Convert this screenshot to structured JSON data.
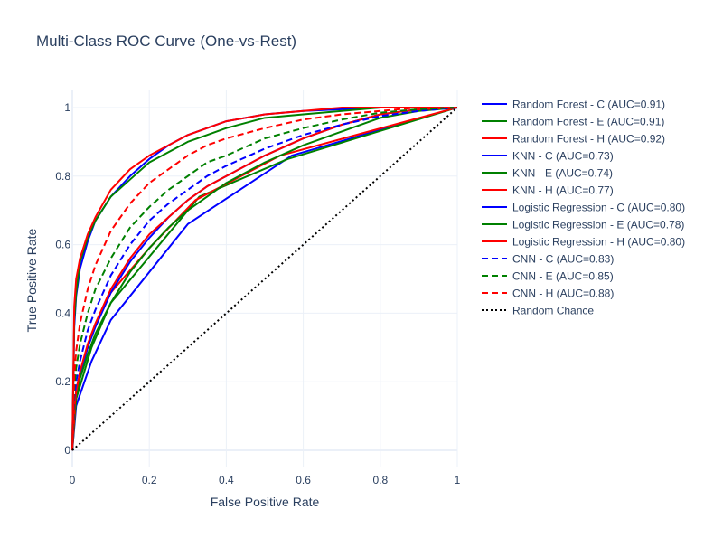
{
  "chart_data": {
    "type": "line",
    "title": "Multi-Class ROC Curve (One-vs-Rest)",
    "xlabel": "False Positive Rate",
    "ylabel": "True Positive Rate",
    "xlim": [
      0,
      1
    ],
    "ylim": [
      -0.05,
      1.05
    ],
    "xticks": [
      0,
      0.2,
      0.4,
      0.6,
      0.8,
      1
    ],
    "xtick_labels": [
      "0",
      "0.2",
      "0.4",
      "0.6",
      "0.8",
      "1"
    ],
    "yticks": [
      0,
      0.2,
      0.4,
      0.6,
      0.8,
      1
    ],
    "ytick_labels": [
      "0",
      "0.2",
      "0.4",
      "0.6",
      "0.8",
      "1"
    ],
    "grid": true,
    "legend_position": "right",
    "colors": {
      "C": "#0000ff",
      "E": "#008000",
      "H": "#ff0000",
      "chance": "#000000"
    },
    "series": [
      {
        "name": "Random Forest - C (AUC=0.91)",
        "color": "#0000ff",
        "dash": "solid",
        "x": [
          0,
          0.005,
          0.01,
          0.02,
          0.04,
          0.06,
          0.1,
          0.15,
          0.2,
          0.25,
          0.3,
          0.35,
          0.4,
          0.5,
          0.6,
          0.7,
          0.8,
          0.9,
          1.0
        ],
        "y": [
          0,
          0.36,
          0.45,
          0.53,
          0.61,
          0.67,
          0.74,
          0.8,
          0.85,
          0.89,
          0.92,
          0.94,
          0.96,
          0.98,
          0.99,
          0.995,
          1.0,
          1.0,
          1.0
        ]
      },
      {
        "name": "Random Forest - E (AUC=0.91)",
        "color": "#008000",
        "dash": "solid",
        "x": [
          0,
          0.005,
          0.01,
          0.02,
          0.04,
          0.06,
          0.1,
          0.15,
          0.2,
          0.25,
          0.3,
          0.35,
          0.4,
          0.5,
          0.6,
          0.7,
          0.8,
          0.9,
          1.0
        ],
        "y": [
          0,
          0.38,
          0.46,
          0.55,
          0.62,
          0.67,
          0.74,
          0.79,
          0.84,
          0.87,
          0.9,
          0.92,
          0.94,
          0.97,
          0.98,
          0.99,
          1.0,
          1.0,
          1.0
        ]
      },
      {
        "name": "Random Forest - H (AUC=0.92)",
        "color": "#ff0000",
        "dash": "solid",
        "x": [
          0,
          0.005,
          0.01,
          0.02,
          0.04,
          0.06,
          0.1,
          0.15,
          0.2,
          0.25,
          0.3,
          0.35,
          0.4,
          0.5,
          0.6,
          0.7,
          0.8,
          0.9,
          1.0
        ],
        "y": [
          0,
          0.42,
          0.5,
          0.56,
          0.63,
          0.68,
          0.76,
          0.82,
          0.86,
          0.89,
          0.92,
          0.94,
          0.96,
          0.98,
          0.99,
          1.0,
          1.0,
          1.0,
          1.0
        ]
      },
      {
        "name": "KNN - C (AUC=0.73)",
        "color": "#0000ff",
        "dash": "solid",
        "x": [
          0,
          0.01,
          0.05,
          0.1,
          0.3,
          0.57,
          1.0
        ],
        "y": [
          0,
          0.13,
          0.26,
          0.38,
          0.66,
          0.86,
          1.0
        ]
      },
      {
        "name": "KNN - E (AUC=0.74)",
        "color": "#008000",
        "dash": "solid",
        "x": [
          0,
          0.01,
          0.05,
          0.1,
          0.33,
          0.56,
          1.0
        ],
        "y": [
          0,
          0.15,
          0.3,
          0.43,
          0.74,
          0.85,
          1.0
        ]
      },
      {
        "name": "KNN - H (AUC=0.77)",
        "color": "#ff0000",
        "dash": "solid",
        "x": [
          0,
          0.01,
          0.05,
          0.1,
          0.2,
          0.32,
          0.54,
          1.0
        ],
        "y": [
          0,
          0.18,
          0.34,
          0.46,
          0.59,
          0.73,
          0.86,
          1.0
        ]
      },
      {
        "name": "Logistic Regression - C (AUC=0.80)",
        "color": "#0000ff",
        "dash": "solid",
        "x": [
          0,
          0.005,
          0.01,
          0.02,
          0.04,
          0.06,
          0.1,
          0.15,
          0.2,
          0.25,
          0.3,
          0.35,
          0.4,
          0.5,
          0.6,
          0.7,
          0.8,
          0.9,
          1.0
        ],
        "y": [
          0,
          0.12,
          0.16,
          0.22,
          0.3,
          0.36,
          0.46,
          0.55,
          0.62,
          0.68,
          0.73,
          0.77,
          0.8,
          0.86,
          0.91,
          0.95,
          0.98,
          0.995,
          1.0
        ]
      },
      {
        "name": "Logistic Regression - E (AUC=0.78)",
        "color": "#008000",
        "dash": "solid",
        "x": [
          0,
          0.005,
          0.01,
          0.02,
          0.04,
          0.06,
          0.1,
          0.15,
          0.2,
          0.25,
          0.3,
          0.35,
          0.4,
          0.5,
          0.6,
          0.7,
          0.8,
          0.9,
          1.0
        ],
        "y": [
          0,
          0.11,
          0.15,
          0.21,
          0.28,
          0.34,
          0.43,
          0.52,
          0.59,
          0.65,
          0.7,
          0.74,
          0.78,
          0.84,
          0.89,
          0.93,
          0.97,
          0.99,
          1.0
        ]
      },
      {
        "name": "Logistic Regression - H (AUC=0.80)",
        "color": "#ff0000",
        "dash": "solid",
        "x": [
          0,
          0.005,
          0.01,
          0.02,
          0.04,
          0.06,
          0.1,
          0.15,
          0.2,
          0.25,
          0.3,
          0.35,
          0.4,
          0.5,
          0.6,
          0.7,
          0.8,
          0.9,
          1.0
        ],
        "y": [
          0,
          0.12,
          0.17,
          0.23,
          0.31,
          0.37,
          0.47,
          0.56,
          0.63,
          0.68,
          0.73,
          0.77,
          0.8,
          0.86,
          0.91,
          0.95,
          0.98,
          0.995,
          1.0
        ]
      },
      {
        "name": "CNN - C (AUC=0.83)",
        "color": "#0000ff",
        "dash": "dash",
        "x": [
          0,
          0.005,
          0.01,
          0.02,
          0.04,
          0.06,
          0.1,
          0.15,
          0.2,
          0.25,
          0.3,
          0.35,
          0.4,
          0.5,
          0.6,
          0.7,
          0.8,
          0.9,
          1.0
        ],
        "y": [
          0,
          0.15,
          0.2,
          0.26,
          0.35,
          0.41,
          0.51,
          0.6,
          0.67,
          0.72,
          0.76,
          0.8,
          0.83,
          0.88,
          0.92,
          0.95,
          0.975,
          0.99,
          1.0
        ]
      },
      {
        "name": "CNN - E (AUC=0.85)",
        "color": "#008000",
        "dash": "dash",
        "x": [
          0,
          0.005,
          0.01,
          0.02,
          0.04,
          0.06,
          0.1,
          0.15,
          0.2,
          0.25,
          0.3,
          0.35,
          0.4,
          0.5,
          0.6,
          0.7,
          0.8,
          0.9,
          1.0
        ],
        "y": [
          0,
          0.18,
          0.24,
          0.31,
          0.4,
          0.47,
          0.56,
          0.65,
          0.71,
          0.76,
          0.8,
          0.84,
          0.86,
          0.91,
          0.94,
          0.965,
          0.985,
          0.995,
          1.0
        ]
      },
      {
        "name": "CNN - H (AUC=0.88)",
        "color": "#ff0000",
        "dash": "dash",
        "x": [
          0,
          0.005,
          0.01,
          0.02,
          0.04,
          0.06,
          0.1,
          0.15,
          0.2,
          0.25,
          0.3,
          0.35,
          0.4,
          0.5,
          0.6,
          0.7,
          0.8,
          0.9,
          1.0
        ],
        "y": [
          0,
          0.22,
          0.29,
          0.37,
          0.47,
          0.54,
          0.64,
          0.72,
          0.78,
          0.82,
          0.86,
          0.89,
          0.91,
          0.94,
          0.965,
          0.98,
          0.99,
          1.0,
          1.0
        ]
      },
      {
        "name": "Random Chance",
        "color": "#000000",
        "dash": "dot",
        "x": [
          0,
          1
        ],
        "y": [
          0,
          1
        ]
      }
    ]
  }
}
